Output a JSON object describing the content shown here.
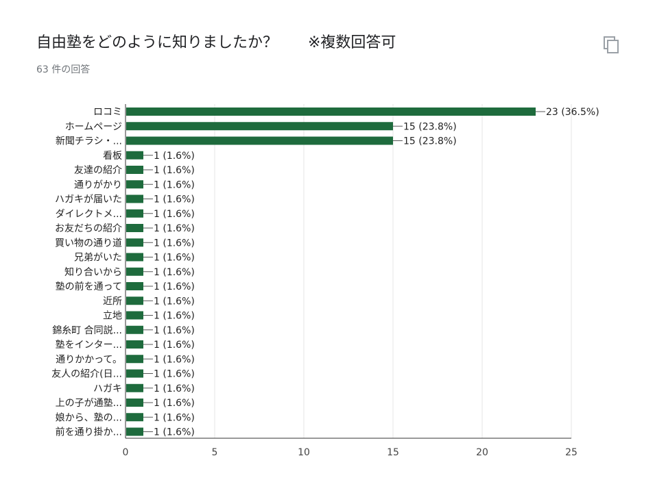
{
  "header": {
    "title": "自由塾をどのように知りましたか？　　※複数回答可",
    "response_count": "63 件の回答"
  },
  "toolbar": {
    "copy_icon": "copy-icon"
  },
  "colors": {
    "bar": "#1e6b3d",
    "grid": "#e6e6e6",
    "axis": "#333333"
  },
  "chart_data": {
    "type": "bar",
    "orientation": "horizontal",
    "title": "自由塾をどのように知りましたか？　　※複数回答可",
    "categories": [
      "ロコミ",
      "ホームページ",
      "新聞チラシ・...",
      "看板",
      "友達の紹介",
      "通りがかり",
      "ハガキが届いた",
      "ダイレクトメ...",
      "お友だちの紹介",
      "買い物の通り道",
      "兄弟がいた",
      "知り合いから",
      "塾の前を通って",
      "近所",
      "立地",
      "錦糸町 合同説...",
      "塾をインター...",
      "通りかかって。",
      "友人の紹介(日...",
      "ハガキ",
      "上の子が通塾...",
      "娘から、塾の...",
      "前を通り掛か..."
    ],
    "values": [
      23,
      15,
      15,
      1,
      1,
      1,
      1,
      1,
      1,
      1,
      1,
      1,
      1,
      1,
      1,
      1,
      1,
      1,
      1,
      1,
      1,
      1,
      1
    ],
    "value_labels": [
      "23 (36.5%)",
      "15 (23.8%)",
      "15 (23.8%)",
      "1 (1.6%)",
      "1 (1.6%)",
      "1 (1.6%)",
      "1 (1.6%)",
      "1 (1.6%)",
      "1 (1.6%)",
      "1 (1.6%)",
      "1 (1.6%)",
      "1 (1.6%)",
      "1 (1.6%)",
      "1 (1.6%)",
      "1 (1.6%)",
      "1 (1.6%)",
      "1 (1.6%)",
      "1 (1.6%)",
      "1 (1.6%)",
      "1 (1.6%)",
      "1 (1.6%)",
      "1 (1.6%)",
      "1 (1.6%)"
    ],
    "xticks": [
      "0",
      "5",
      "10",
      "15",
      "20",
      "25"
    ],
    "xlim": [
      0,
      25
    ],
    "grid": true,
    "legend": "none"
  }
}
